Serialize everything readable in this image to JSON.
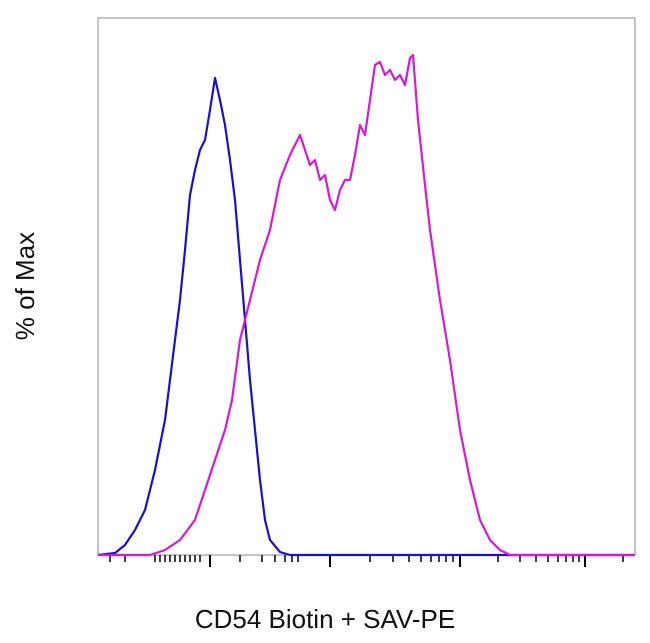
{
  "chart_data": {
    "type": "line",
    "x_label": "CD54 Biotin + SAV-PE",
    "y_label": "% of Max",
    "xlim": [
      0,
      537
    ],
    "ylim": [
      0,
      107.4
    ],
    "xticks": [
      112,
      232,
      362,
      487
    ],
    "xminorticks": [
      12,
      27,
      57,
      62,
      67,
      72,
      77,
      82,
      87,
      92,
      97,
      102,
      142,
      164,
      177,
      187,
      194,
      200,
      272,
      295,
      311,
      323,
      333,
      341,
      348,
      355,
      400,
      422,
      438,
      450,
      460,
      468,
      475,
      481,
      525
    ],
    "series": [
      {
        "color": "#1a10c8",
        "x": [
          0,
          17,
          27,
          37,
          47,
          57,
          67,
          77,
          82,
          87,
          92,
          97,
          102,
          107,
          112,
          117,
          122,
          127,
          132,
          137,
          142,
          147,
          152,
          157,
          162,
          167,
          172,
          182,
          192,
          537
        ],
        "values": [
          0,
          0.4,
          2,
          5,
          9,
          17,
          27,
          43,
          51,
          61,
          72,
          77,
          81,
          83,
          89,
          95.4,
          91,
          86,
          79,
          71,
          59,
          47,
          35,
          25,
          15,
          7,
          3,
          0.6,
          0,
          0
        ]
      },
      {
        "color": "#d41ad4",
        "x": [
          0,
          52,
          67,
          82,
          97,
          107,
          117,
          127,
          134,
          142,
          152,
          162,
          172,
          182,
          192,
          202,
          207,
          212,
          217,
          222,
          227,
          232,
          237,
          242,
          247,
          252,
          257,
          262,
          267,
          272,
          277,
          282,
          287,
          292,
          297,
          302,
          307,
          312,
          315,
          320,
          327,
          332,
          342,
          352,
          362,
          372,
          382,
          392,
          402,
          412,
          537
        ],
        "values": [
          0,
          0,
          1,
          3,
          7,
          13,
          19,
          25,
          31,
          43,
          51,
          59,
          65,
          75,
          80,
          84,
          81,
          78,
          79,
          75,
          76,
          71,
          69,
          73,
          75,
          75,
          80,
          86,
          84,
          91,
          98,
          98.6,
          96,
          97,
          95,
          96,
          94,
          99.4,
          100,
          87,
          74,
          65,
          51,
          39,
          25,
          15,
          7,
          3,
          1,
          0,
          0
        ]
      }
    ]
  }
}
